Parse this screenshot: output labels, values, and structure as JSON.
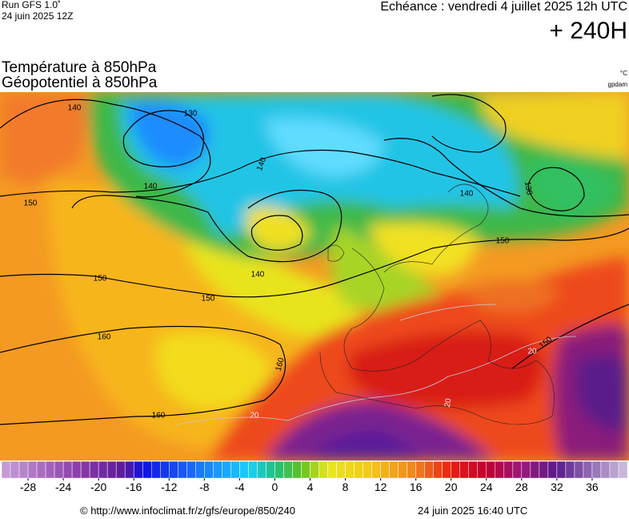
{
  "header": {
    "run": "Run GFS 1.0˚",
    "run_date": "24 juin 2025 12Z",
    "valid": "Echéance : vendredi 4 juillet 2025 12h UTC",
    "lead": "+ 240H",
    "title_1": "Température à 850hPa",
    "title_2": "Géopotentiel à 850hPa",
    "unit_temp": "°C",
    "unit_geo": "gpdam"
  },
  "map": {
    "contour_labels": [
      140,
      130,
      140,
      150,
      140,
      140,
      130,
      150,
      150,
      140,
      150,
      160,
      160,
      160,
      20,
      20,
      20,
      150
    ]
  },
  "colorbar": {
    "range": [
      -31,
      40
    ],
    "ticks": [
      -28,
      -24,
      -20,
      -16,
      -12,
      -8,
      -4,
      0,
      4,
      8,
      12,
      16,
      20,
      24,
      28,
      32,
      36
    ],
    "color_stops": [
      [
        -31,
        "#c8a0d8"
      ],
      [
        -22,
        "#8a3aa8"
      ],
      [
        -17,
        "#5a1a9a"
      ],
      [
        -15,
        "#1010e0"
      ],
      [
        -9,
        "#1a70ff"
      ],
      [
        -3,
        "#1ad0ff"
      ],
      [
        0,
        "#20c080"
      ],
      [
        3,
        "#60c020"
      ],
      [
        6,
        "#e8e820"
      ],
      [
        11,
        "#f5c518"
      ],
      [
        16,
        "#f08020"
      ],
      [
        20,
        "#e82010"
      ],
      [
        24,
        "#c00030"
      ],
      [
        28,
        "#9a1a7a"
      ],
      [
        32,
        "#5a1a8a"
      ],
      [
        40,
        "#d0c0e0"
      ]
    ]
  },
  "footer": {
    "url": "© http://www.infoclimat.fr/z/gfs/europe/850/240",
    "generated": "24 juin 2025 16:40 UTC"
  }
}
